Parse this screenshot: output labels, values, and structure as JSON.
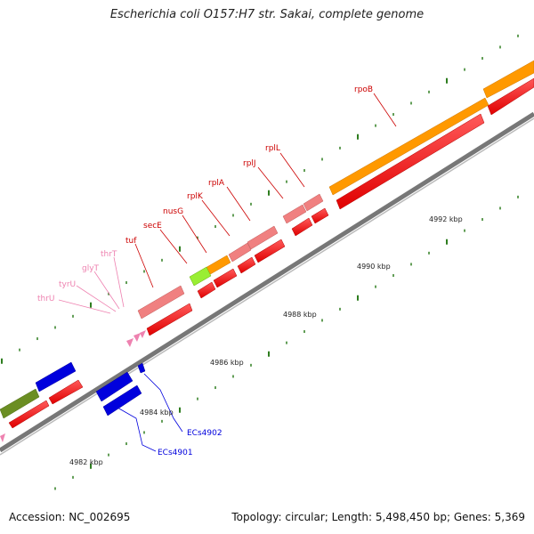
{
  "title": "Escherichia coli O157:H7 str. Sakai, complete genome",
  "footer": {
    "accession": "Accession: NC_002695",
    "summary": "Topology: circular; Length: 5,498,450 bp; Genes: 5,369"
  },
  "colors": {
    "backbone": "#8a8a8a",
    "tick": "#2e7d1f",
    "cds": "#ff0000",
    "rrna_trna_label": "#ee82b0",
    "orange": "#ff9900",
    "olive": "#6b8e23",
    "lime": "#99ee33",
    "pink": "#f08080",
    "blue": "#0000dd"
  },
  "scale_labels": [
    "4982 kbp",
    "4984 kbp",
    "4986 kbp",
    "4988 kbp",
    "4990 kbp",
    "4992 kbp"
  ],
  "gene_labels": {
    "red": [
      "tuf",
      "secE",
      "nusG",
      "rplK",
      "rplA",
      "rplJ",
      "rplL",
      "rpoB"
    ],
    "pink": [
      "thrU",
      "tyrU",
      "glyT",
      "thrT"
    ],
    "blue": [
      "ECs4901",
      "ECs4902"
    ]
  }
}
